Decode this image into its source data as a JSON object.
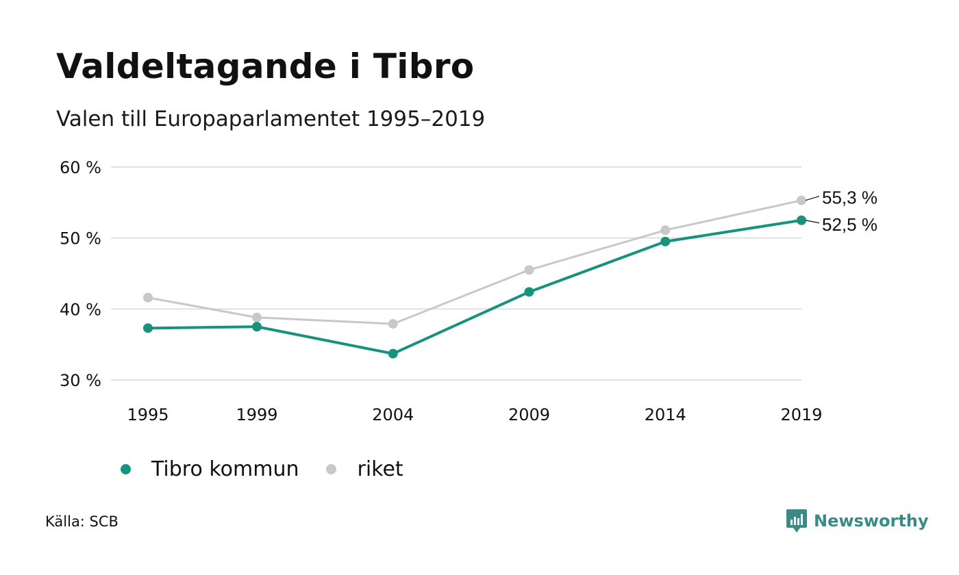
{
  "title": "Valdeltagande i Tibro",
  "subtitle": "Valen till Europaparlamentet 1995–2019",
  "source": "Källa: SCB",
  "brand": "Newsworthy",
  "colors": {
    "tibro": "#16927f",
    "riket": "#c8c8c8",
    "grid": "#e0e0e0",
    "brand": "#3c8a86"
  },
  "chart_data": {
    "type": "line",
    "x": [
      1995,
      1999,
      2004,
      2009,
      2014,
      2019
    ],
    "x_tick_labels": [
      "1995",
      "1999",
      "2004",
      "2009",
      "2014",
      "2019"
    ],
    "ylim": [
      30,
      60
    ],
    "y_ticks": [
      30,
      40,
      50,
      60
    ],
    "y_tick_labels": [
      "30 %",
      "40 %",
      "50 %",
      "60 %"
    ],
    "grid": true,
    "legend_position": "bottom-left",
    "series": [
      {
        "name": "Tibro kommun",
        "color": "#16927f",
        "values": [
          37.3,
          37.5,
          33.7,
          42.4,
          49.5,
          52.5
        ],
        "end_label": "52,5 %"
      },
      {
        "name": "riket",
        "color": "#c8c8c8",
        "values": [
          41.6,
          38.8,
          37.9,
          45.5,
          51.1,
          55.3
        ],
        "end_label": "55,3 %"
      }
    ]
  }
}
